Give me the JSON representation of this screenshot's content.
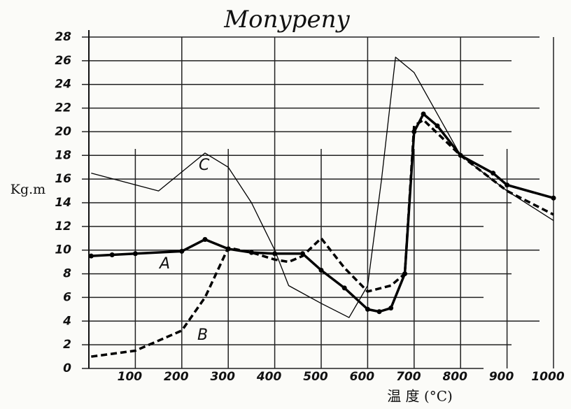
{
  "chart_data": {
    "type": "line",
    "title": "Monypeny",
    "y_label": "Kg.m",
    "x_label": "温 度 (°C)",
    "xlim": [
      0,
      1000
    ],
    "xticks": [
      100,
      200,
      300,
      400,
      500,
      600,
      700,
      800,
      900,
      1000
    ],
    "ylim": [
      0,
      28
    ],
    "yticks": [
      0,
      2,
      4,
      6,
      8,
      10,
      12,
      14,
      16,
      18,
      20,
      22,
      24,
      26,
      28
    ],
    "grid": true,
    "series": [
      {
        "name": "A",
        "color": "#000000",
        "x": [
          5,
          50,
          100,
          200,
          250,
          300,
          350,
          400,
          460,
          500,
          550,
          600,
          625,
          650,
          680,
          700,
          720,
          750,
          800,
          870,
          900,
          1000
        ],
        "values": [
          9.5,
          9.6,
          9.7,
          9.9,
          10.9,
          10.1,
          9.8,
          9.7,
          9.7,
          8.3,
          6.8,
          5.0,
          4.8,
          5.1,
          8.0,
          20.0,
          21.5,
          20.5,
          18.0,
          16.5,
          15.5,
          14.4
        ]
      },
      {
        "name": "B",
        "color": "#000000",
        "x": [
          5,
          100,
          200,
          250,
          300,
          350,
          400,
          430,
          460,
          500,
          550,
          600,
          650,
          680,
          700,
          720,
          800,
          900,
          1000
        ],
        "values": [
          1.0,
          1.5,
          3.2,
          6.0,
          10.2,
          9.8,
          9.2,
          9.0,
          9.5,
          11.0,
          8.5,
          6.5,
          7.0,
          8.0,
          20.5,
          21.0,
          18.0,
          15.0,
          13.0
        ]
      },
      {
        "name": "C",
        "color": "#000000",
        "x": [
          5,
          150,
          250,
          300,
          350,
          400,
          430,
          500,
          560,
          600,
          630,
          660,
          700,
          800,
          900,
          1000
        ],
        "values": [
          16.5,
          15.0,
          18.2,
          17.0,
          14.0,
          10.0,
          7.0,
          5.5,
          4.3,
          7.0,
          16.0,
          26.3,
          25.0,
          18.0,
          15.0,
          12.5
        ]
      }
    ]
  }
}
